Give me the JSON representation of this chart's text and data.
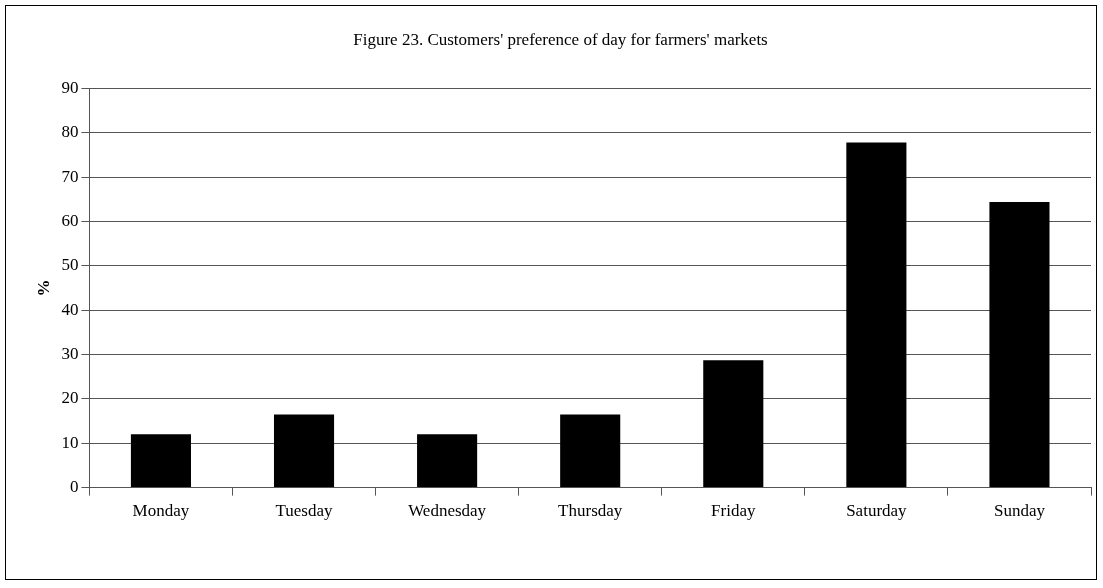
{
  "chart_data": {
    "type": "bar",
    "title": "Figure 23. Customers' preference of day for farmers' markets",
    "ylabel": "%",
    "categories": [
      "Monday",
      "Tuesday",
      "Wednesday",
      "Thursday",
      "Friday",
      "Saturday",
      "Sunday"
    ],
    "values": [
      12,
      16.5,
      12,
      16.5,
      28.7,
      77.8,
      64.4
    ],
    "color": "#000000",
    "ylim": [
      0,
      90
    ],
    "yticks": [
      0,
      10,
      20,
      30,
      40,
      50,
      60,
      70,
      80,
      90
    ],
    "grid": "y",
    "legend": false
  }
}
